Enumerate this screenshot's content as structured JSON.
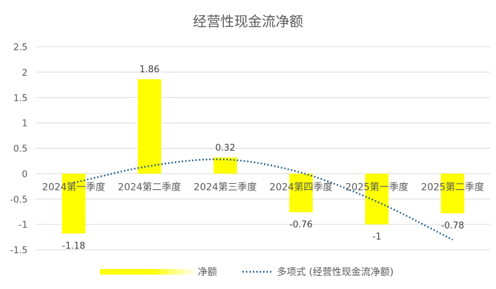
{
  "chart_data": {
    "type": "bar",
    "title": "经营性现金流净额",
    "categories": [
      "2024第一季度",
      "2024第二季度",
      "2024第三季度",
      "2024第四季度",
      "2025第一季度",
      "2025第二季度"
    ],
    "series": [
      {
        "name": "净额",
        "values": [
          -1.18,
          1.86,
          0.32,
          -0.76,
          -1,
          -0.78
        ],
        "color": "#FFFF00"
      }
    ],
    "data_labels": [
      "-1.18",
      "1.86",
      "0.32",
      "-0.76",
      "-1",
      "-0.78"
    ],
    "trendline": {
      "name": "多项式 (经营性现金流净额)",
      "type": "polynomial",
      "color": "#1F5C8B",
      "y_values": [
        -0.18,
        0.15,
        0.28,
        0.02,
        -0.55,
        -1.3
      ]
    },
    "ylim": [
      -1.5,
      2.5
    ],
    "yticks": [
      "-1.5",
      "-1",
      "-0.5",
      "0",
      "0.5",
      "1",
      "1.5",
      "2",
      "2.5"
    ],
    "grid": true,
    "legend_position": "bottom"
  }
}
